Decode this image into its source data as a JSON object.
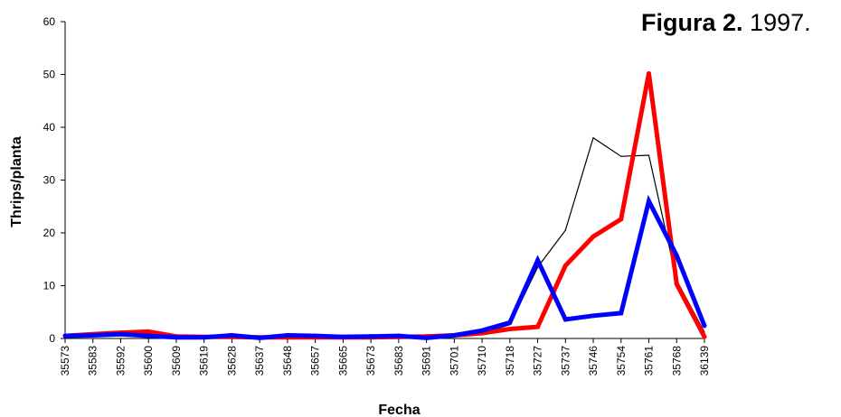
{
  "figure": {
    "label": "Figura 2.",
    "text": "1997."
  },
  "chart_data": {
    "type": "line",
    "title": "Figura 2. 1997.",
    "xlabel": "Fecha",
    "ylabel": "Thrips/planta",
    "ylim": [
      0,
      60
    ],
    "yticks": [
      0,
      10,
      20,
      30,
      40,
      50,
      60
    ],
    "grid": false,
    "legend": "none",
    "categories": [
      "35573",
      "35583",
      "35592",
      "35600",
      "35609",
      "35619",
      "35628",
      "35637",
      "35648",
      "35657",
      "35665",
      "35673",
      "35683",
      "35691",
      "35701",
      "35710",
      "35718",
      "35727",
      "35737",
      "35746",
      "35754",
      "35761",
      "35768",
      "36139"
    ],
    "series": [
      {
        "color": "#000000",
        "stroke": "thin",
        "values": [
          0.3,
          0.4,
          0.6,
          0.3,
          0.2,
          0.1,
          0.3,
          0.1,
          0.3,
          0.2,
          0.2,
          0.2,
          0.3,
          0.2,
          0.3,
          1.0,
          2.6,
          13.5,
          20.5,
          38.0,
          34.5,
          34.7,
          11.0,
          1.2
        ]
      },
      {
        "color": "#ff0000",
        "stroke": "thick",
        "values": [
          0.5,
          0.8,
          1.1,
          1.3,
          0.4,
          0.3,
          0.3,
          0.2,
          0.2,
          0.2,
          0.2,
          0.2,
          0.3,
          0.4,
          0.6,
          1.0,
          1.8,
          2.2,
          13.8,
          19.3,
          22.6,
          50.2,
          10.3,
          0.3
        ]
      },
      {
        "color": "#0000ff",
        "stroke": "thick",
        "values": [
          0.5,
          0.6,
          0.8,
          0.5,
          0.2,
          0.2,
          0.6,
          0.1,
          0.6,
          0.5,
          0.3,
          0.4,
          0.5,
          0.1,
          0.6,
          1.5,
          3.0,
          14.8,
          3.6,
          4.3,
          4.8,
          26.0,
          15.7,
          2.4
        ]
      }
    ]
  }
}
